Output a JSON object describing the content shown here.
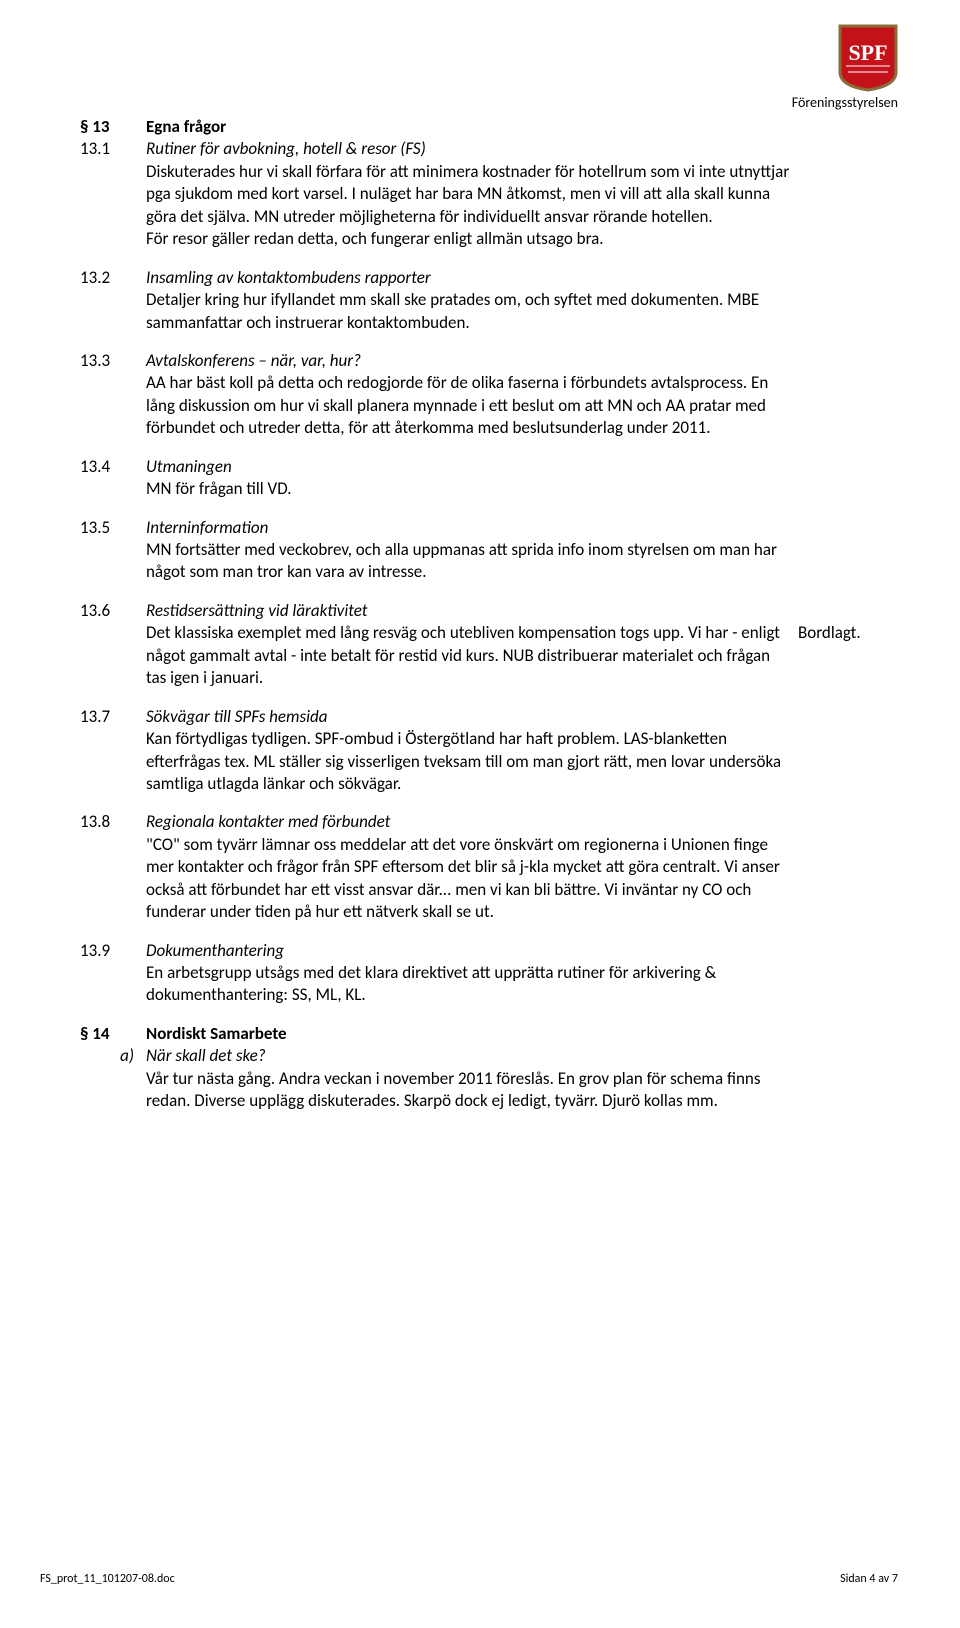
{
  "header": {
    "org_label": "Föreningsstyrelsen",
    "logo_text": "SPF",
    "logo_bg": "#c31219",
    "logo_border": "#8a6d3b",
    "logo_text_color": "#ffffff"
  },
  "sections": [
    {
      "num": "§ 13",
      "title_bold": "Egna frågor",
      "subtitle": "",
      "text": ""
    },
    {
      "num": "13.1",
      "title_bold": "",
      "subtitle": "Rutiner för avbokning, hotell & resor (FS)",
      "text": "Diskuterades hur vi skall förfara för att minimera kostnader för hotellrum som vi inte utnyttjar pga sjukdom med kort varsel. I nuläget har bara MN åtkomst, men vi vill att alla skall kunna göra det själva. MN utreder möjligheterna för individuellt ansvar rörande hotellen.\nFör resor gäller redan detta, och fungerar enligt allmän utsago bra."
    },
    {
      "num": "13.2",
      "title_bold": "",
      "subtitle": "Insamling av kontaktombudens rapporter",
      "text": "Detaljer kring hur ifyllandet mm skall ske pratades om, och syftet med dokumenten. MBE sammanfattar och instruerar kontaktombuden."
    },
    {
      "num": "13.3",
      "title_bold": "",
      "subtitle": "Avtalskonferens – när, var, hur?",
      "text": "AA har bäst koll på detta och redogjorde för de olika faserna i förbundets avtalsprocess. En lång diskussion om hur vi skall planera mynnade i ett beslut om att MN och AA pratar med förbundet och utreder detta, för att återkomma med beslutsunderlag under 2011."
    },
    {
      "num": "13.4",
      "title_bold": "",
      "subtitle": "Utmaningen",
      "text": "MN för frågan till VD."
    },
    {
      "num": "13.5",
      "title_bold": "",
      "subtitle": "Interninformation",
      "text": "MN fortsätter med veckobrev, och alla uppmanas att sprida info inom styrelsen om man har något som man tror kan vara av intresse."
    },
    {
      "num": "13.6",
      "title_bold": "",
      "subtitle": "Restidsersättning vid läraktivitet",
      "text": "Det klassiska exemplet med lång resväg och utebliven kompensation togs upp. Vi har - enligt något gammalt avtal - inte betalt för restid vid kurs. NUB distribuerar materialet och frågan tas igen i januari.",
      "right": "Bordlagt."
    },
    {
      "num": "13.7",
      "title_bold": "",
      "subtitle": "Sökvägar till SPFs hemsida",
      "text": "Kan förtydligas tydligen. SPF-ombud i Östergötland har haft problem. LAS-blanketten efterfrågas tex. ML ställer sig visserligen tveksam till om man gjort rätt, men lovar undersöka samtliga utlagda länkar och sökvägar."
    },
    {
      "num": "13.8",
      "title_bold": "",
      "subtitle": "Regionala kontakter med förbundet",
      "text": "\"CO\" som tyvärr lämnar oss meddelar att det vore önskvärt om regionerna i Unionen finge mer kontakter och frågor från SPF eftersom det blir så j-kla mycket att göra centralt. Vi anser också att förbundet har ett visst ansvar där... men vi kan bli bättre. Vi inväntar ny CO och funderar under tiden på hur ett nätverk skall se ut."
    },
    {
      "num": "13.9",
      "title_bold": "",
      "subtitle": "Dokumenthantering",
      "text": "En arbetsgrupp utsågs med det klara direktivet att upprätta rutiner för arkivering & dokumenthantering: SS, ML, KL."
    },
    {
      "num": "§ 14",
      "title_bold": "Nordiskt Samarbete",
      "subtitle": "",
      "text": ""
    },
    {
      "num": "a)",
      "title_bold": "",
      "subtitle": "När skall det ske?",
      "text": "Vår tur nästa gång. Andra veckan i november 2011 föreslås. En grov plan för schema finns redan. Diverse upplägg diskuterades. Skarpö dock ej ledigt, tyvärr. Djurö kollas mm.",
      "indent": true
    }
  ],
  "footer": {
    "left": "FS_prot_11_101207-08.doc",
    "right": "Sidan 4 av 7"
  }
}
